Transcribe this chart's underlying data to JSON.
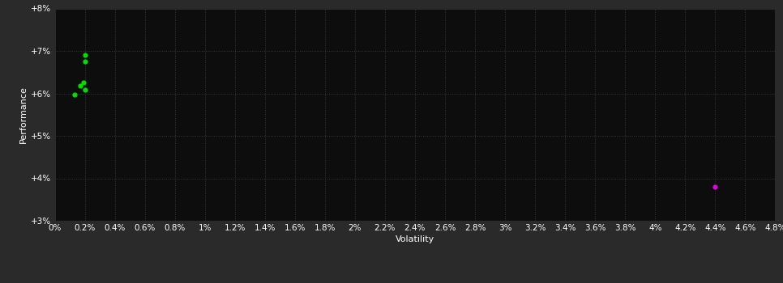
{
  "background_color": "#2a2a2a",
  "plot_bg_color": "#0d0d0d",
  "grid_color": "#3a3a3a",
  "grid_style": ":",
  "xlabel": "Volatility",
  "ylabel": "Performance",
  "xlim": [
    0,
    0.048
  ],
  "ylim": [
    0.03,
    0.08
  ],
  "xticks": [
    0.0,
    0.002,
    0.004,
    0.006,
    0.008,
    0.01,
    0.012,
    0.014,
    0.016,
    0.018,
    0.02,
    0.022,
    0.024,
    0.026,
    0.028,
    0.03,
    0.032,
    0.034,
    0.036,
    0.038,
    0.04,
    0.042,
    0.044,
    0.046,
    0.048
  ],
  "xtick_labels": [
    "0%",
    "0.2%",
    "0.4%",
    "0.6%",
    "0.8%",
    "1%",
    "1.2%",
    "1.4%",
    "1.6%",
    "1.8%",
    "2%",
    "2.2%",
    "2.4%",
    "2.6%",
    "2.8%",
    "3%",
    "3.2%",
    "3.4%",
    "3.6%",
    "3.8%",
    "4%",
    "4.2%",
    "4.4%",
    "4.6%",
    "4.8%"
  ],
  "yticks": [
    0.03,
    0.04,
    0.05,
    0.06,
    0.07,
    0.08
  ],
  "ytick_labels": [
    "+3%",
    "+4%",
    "+5%",
    "+6%",
    "+7%",
    "+8%"
  ],
  "green_points": [
    [
      0.002,
      0.069
    ],
    [
      0.002,
      0.0675
    ],
    [
      0.0019,
      0.0625
    ],
    [
      0.0017,
      0.0618
    ],
    [
      0.002,
      0.0608
    ],
    [
      0.0013,
      0.0597
    ]
  ],
  "magenta_points": [
    [
      0.044,
      0.038
    ]
  ],
  "point_color_green": "#00dd00",
  "point_color_magenta": "#dd00dd",
  "point_size": 12,
  "tick_color": "#ffffff",
  "label_color": "#ffffff",
  "tick_fontsize": 7.5,
  "label_fontsize": 8
}
